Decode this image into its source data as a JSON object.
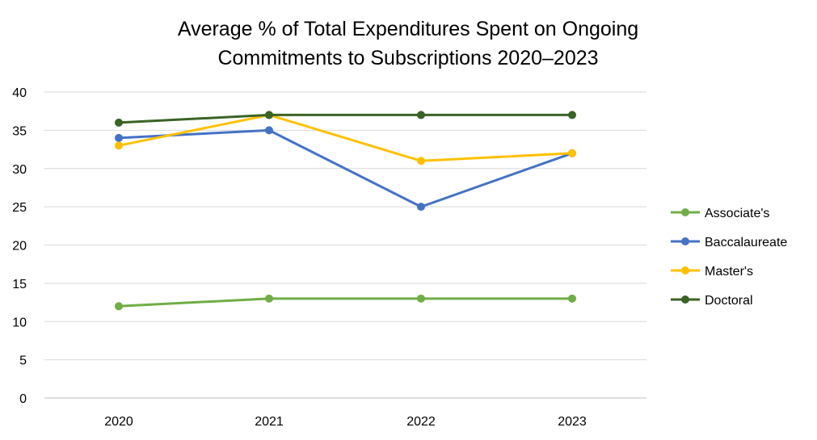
{
  "chart_data": {
    "type": "line",
    "title": [
      "Average % of Total Expenditures Spent on Ongoing",
      "Commitments to Subscriptions 2020–2023"
    ],
    "categories": [
      "2020",
      "2021",
      "2022",
      "2023"
    ],
    "ylim": [
      0,
      40
    ],
    "yticks": [
      0,
      5,
      10,
      15,
      20,
      25,
      30,
      35,
      40
    ],
    "grid": true,
    "legend_position": "right",
    "series": [
      {
        "name": "Associate's",
        "color": "#70AD47",
        "values": [
          12,
          13,
          13,
          13
        ]
      },
      {
        "name": "Baccalaureate",
        "color": "#4472C4",
        "values": [
          34,
          35,
          25,
          32
        ]
      },
      {
        "name": "Master's",
        "color": "#FFC000",
        "values": [
          33,
          37,
          31,
          32
        ]
      },
      {
        "name": "Doctoral",
        "color": "#3B6326",
        "values": [
          36,
          37,
          37,
          37
        ]
      }
    ]
  }
}
